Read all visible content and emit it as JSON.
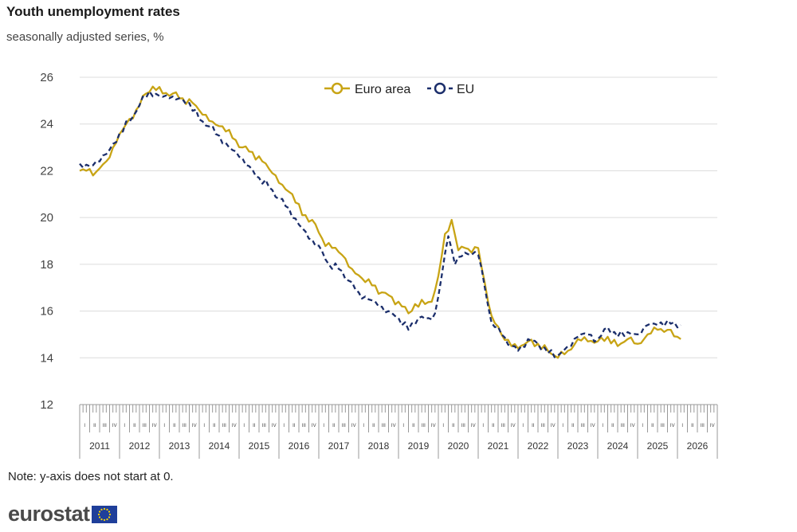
{
  "header": {
    "title": "Youth unemployment rates",
    "subtitle": "seasonally adjusted series, %"
  },
  "note": "Note: y-axis does not start at 0.",
  "logo": {
    "text": "eurostat"
  },
  "colors": {
    "euro_area": "#c8a415",
    "eu": "#1b2e6b",
    "grid": "#dcdcdc",
    "axis": "#999999"
  },
  "chart_data": {
    "type": "line",
    "x_unit": "month",
    "x_start": "2011-01",
    "x_end": "2026-02",
    "ylim": [
      12,
      26
    ],
    "yticks": [
      12,
      14,
      16,
      18,
      20,
      22,
      24,
      26
    ],
    "years": [
      "2011",
      "2012",
      "2013",
      "2014",
      "2015",
      "2016",
      "2017",
      "2018",
      "2019",
      "2020",
      "2021",
      "2022",
      "2023",
      "2024",
      "2025",
      "2026"
    ],
    "quarters": [
      "I",
      "II",
      "III",
      "IV"
    ],
    "legend": "top-center",
    "grid": true,
    "series": [
      {
        "name": "Euro area",
        "style": "solid",
        "anchors": [
          [
            "2011-01",
            22.0
          ],
          [
            "2011-03",
            22.0
          ],
          [
            "2011-05",
            21.8
          ],
          [
            "2011-07",
            22.1
          ],
          [
            "2011-09",
            22.4
          ],
          [
            "2011-12",
            23.2
          ],
          [
            "2012-03",
            24.0
          ],
          [
            "2012-06",
            24.6
          ],
          [
            "2012-09",
            25.3
          ],
          [
            "2012-11",
            25.6
          ],
          [
            "2013-02",
            25.3
          ],
          [
            "2013-05",
            25.3
          ],
          [
            "2013-08",
            25.1
          ],
          [
            "2013-11",
            24.9
          ],
          [
            "2014-02",
            24.4
          ],
          [
            "2014-05",
            24.1
          ],
          [
            "2014-08",
            23.9
          ],
          [
            "2014-11",
            23.4
          ],
          [
            "2015-02",
            23.0
          ],
          [
            "2015-05",
            22.8
          ],
          [
            "2015-08",
            22.4
          ],
          [
            "2015-11",
            21.9
          ],
          [
            "2016-02",
            21.4
          ],
          [
            "2016-05",
            21.0
          ],
          [
            "2016-08",
            20.1
          ],
          [
            "2016-11",
            19.9
          ],
          [
            "2017-02",
            19.1
          ],
          [
            "2017-05",
            18.7
          ],
          [
            "2017-08",
            18.4
          ],
          [
            "2017-11",
            17.8
          ],
          [
            "2018-02",
            17.4
          ],
          [
            "2018-05",
            17.1
          ],
          [
            "2018-08",
            16.8
          ],
          [
            "2018-11",
            16.6
          ],
          [
            "2019-02",
            16.2
          ],
          [
            "2019-04",
            15.9
          ],
          [
            "2019-06",
            16.3
          ],
          [
            "2019-09",
            16.3
          ],
          [
            "2019-11",
            16.4
          ],
          [
            "2020-01",
            17.5
          ],
          [
            "2020-03",
            19.3
          ],
          [
            "2020-05",
            19.9
          ],
          [
            "2020-07",
            18.6
          ],
          [
            "2020-09",
            18.7
          ],
          [
            "2020-11",
            18.5
          ],
          [
            "2021-01",
            18.7
          ],
          [
            "2021-03",
            17.2
          ],
          [
            "2021-05",
            15.8
          ],
          [
            "2021-08",
            15.0
          ],
          [
            "2021-11",
            14.5
          ],
          [
            "2022-01",
            14.4
          ],
          [
            "2022-04",
            14.7
          ],
          [
            "2022-07",
            14.6
          ],
          [
            "2022-10",
            14.3
          ],
          [
            "2023-01",
            14.0
          ],
          [
            "2023-04",
            14.3
          ],
          [
            "2023-07",
            14.8
          ],
          [
            "2023-10",
            14.7
          ],
          [
            "2024-01",
            14.7
          ],
          [
            "2024-04",
            14.9
          ],
          [
            "2024-07",
            14.5
          ],
          [
            "2024-10",
            14.8
          ],
          [
            "2025-01",
            14.6
          ],
          [
            "2025-04",
            15.0
          ],
          [
            "2025-07",
            15.2
          ],
          [
            "2025-10",
            15.2
          ],
          [
            "2026-01",
            14.9
          ],
          [
            "2026-02",
            14.8
          ]
        ]
      },
      {
        "name": "EU",
        "style": "dashed",
        "anchors": [
          [
            "2011-01",
            22.3
          ],
          [
            "2011-04",
            22.2
          ],
          [
            "2011-07",
            22.4
          ],
          [
            "2011-10",
            22.9
          ],
          [
            "2012-01",
            23.6
          ],
          [
            "2012-04",
            24.1
          ],
          [
            "2012-07",
            24.8
          ],
          [
            "2012-10",
            25.4
          ],
          [
            "2013-01",
            25.2
          ],
          [
            "2013-04",
            25.1
          ],
          [
            "2013-07",
            25.1
          ],
          [
            "2013-10",
            24.9
          ],
          [
            "2014-01",
            24.2
          ],
          [
            "2014-04",
            23.9
          ],
          [
            "2014-07",
            23.5
          ],
          [
            "2014-10",
            23.0
          ],
          [
            "2015-01",
            22.6
          ],
          [
            "2015-04",
            22.2
          ],
          [
            "2015-07",
            21.7
          ],
          [
            "2015-10",
            21.3
          ],
          [
            "2016-01",
            20.8
          ],
          [
            "2016-04",
            20.4
          ],
          [
            "2016-07",
            19.7
          ],
          [
            "2016-10",
            19.1
          ],
          [
            "2017-01",
            18.8
          ],
          [
            "2017-04",
            18.0
          ],
          [
            "2017-07",
            17.8
          ],
          [
            "2017-10",
            17.3
          ],
          [
            "2018-01",
            16.8
          ],
          [
            "2018-04",
            16.5
          ],
          [
            "2018-07",
            16.2
          ],
          [
            "2018-10",
            16.0
          ],
          [
            "2019-01",
            15.7
          ],
          [
            "2019-04",
            15.2
          ],
          [
            "2019-07",
            15.7
          ],
          [
            "2019-10",
            15.7
          ],
          [
            "2019-12",
            15.9
          ],
          [
            "2020-02",
            17.5
          ],
          [
            "2020-04",
            19.2
          ],
          [
            "2020-06",
            18.0
          ],
          [
            "2020-09",
            18.5
          ],
          [
            "2020-11",
            18.4
          ],
          [
            "2021-01",
            18.4
          ],
          [
            "2021-03",
            17.0
          ],
          [
            "2021-05",
            15.5
          ],
          [
            "2021-08",
            15.0
          ],
          [
            "2021-11",
            14.5
          ],
          [
            "2022-01",
            14.3
          ],
          [
            "2022-04",
            14.8
          ],
          [
            "2022-07",
            14.6
          ],
          [
            "2022-10",
            14.2
          ],
          [
            "2023-01",
            14.1
          ],
          [
            "2023-04",
            14.5
          ],
          [
            "2023-07",
            14.9
          ],
          [
            "2023-10",
            15.0
          ],
          [
            "2024-01",
            14.8
          ],
          [
            "2024-04",
            15.3
          ],
          [
            "2024-07",
            14.9
          ],
          [
            "2024-10",
            15.1
          ],
          [
            "2025-01",
            15.0
          ],
          [
            "2025-04",
            15.4
          ],
          [
            "2025-07",
            15.4
          ],
          [
            "2025-10",
            15.6
          ],
          [
            "2026-01",
            15.3
          ],
          [
            "2026-02",
            15.4
          ]
        ]
      }
    ]
  }
}
